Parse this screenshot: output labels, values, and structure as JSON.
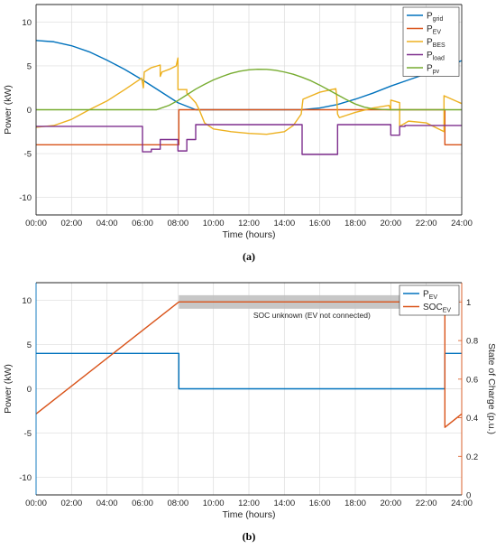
{
  "chart_data": [
    {
      "type": "line",
      "caption": "(a)",
      "xlabel": "Time (hours)",
      "ylabel": "Power (kW)",
      "xlim": [
        0,
        24
      ],
      "ylim": [
        -12,
        12
      ],
      "xticks": [
        "00:00",
        "02:00",
        "04:00",
        "06:00",
        "08:00",
        "10:00",
        "12:00",
        "14:00",
        "16:00",
        "18:00",
        "20:00",
        "22:00",
        "24:00"
      ],
      "yticks": [
        "-10",
        "-5",
        "0",
        "5",
        "10"
      ],
      "grid": true,
      "legend": "top-right",
      "series": [
        {
          "name": "P",
          "sub": "grid",
          "color": "#0072BD",
          "x": [
            0,
            1,
            2,
            3,
            4,
            5,
            6,
            7,
            8,
            9,
            10,
            11,
            12,
            13,
            14,
            15,
            16,
            17,
            18,
            19,
            20,
            21,
            22,
            23,
            24
          ],
          "y": [
            7.9,
            7.75,
            7.3,
            6.6,
            5.65,
            4.6,
            3.4,
            2.1,
            0.8,
            0,
            0,
            0,
            0,
            0,
            0,
            0,
            0.2,
            0.6,
            1.2,
            1.9,
            2.7,
            3.4,
            4.1,
            4.8,
            5.6
          ]
        },
        {
          "name": "P",
          "sub": "EV",
          "color": "#D95319",
          "x": [
            0,
            8.05,
            8.05,
            23.05,
            23.05,
            24
          ],
          "y": [
            -4,
            -4,
            0,
            0,
            -4,
            -4
          ]
        },
        {
          "name": "P",
          "sub": "BES",
          "color": "#EDB120",
          "x": [
            0,
            1,
            2,
            3,
            4,
            5,
            5.95,
            6.05,
            6.1,
            6.5,
            7,
            7,
            7.1,
            7.5,
            7.9,
            8,
            8,
            8.5,
            8.5,
            9,
            9.2,
            9.5,
            10,
            11,
            12,
            13,
            14,
            14.5,
            14.95,
            15.05,
            16,
            16.9,
            16.95,
            17,
            17.1,
            18,
            19,
            19.9,
            20,
            20,
            20.5,
            20.5,
            21,
            22,
            23,
            23,
            24
          ],
          "y": [
            -2,
            -1.8,
            -1.1,
            0,
            1,
            2.3,
            3.6,
            2.5,
            4.3,
            4.8,
            5.1,
            3.8,
            4.3,
            4.6,
            5,
            5.9,
            2.3,
            2.3,
            1.9,
            0.8,
            0,
            -1.5,
            -2.2,
            -2.5,
            -2.7,
            -2.8,
            -2.5,
            -1.8,
            -0.5,
            1.2,
            2,
            2.4,
            1.5,
            -0.5,
            -0.9,
            -0.3,
            0.2,
            0.5,
            0,
            1.1,
            0.8,
            -1.9,
            -1.3,
            -1.5,
            -2.5,
            1.6,
            0.7
          ]
        },
        {
          "name": "P",
          "sub": "load",
          "color": "#7E2F8E",
          "x": [
            0,
            6,
            6,
            6.5,
            6.5,
            7,
            7,
            8,
            8,
            8.5,
            8.5,
            9,
            9,
            15,
            15,
            17,
            17,
            20,
            20,
            20.5,
            20.5,
            20.8,
            20.8,
            24
          ],
          "y": [
            -1.9,
            -1.9,
            -4.8,
            -4.8,
            -4.5,
            -4.5,
            -3.4,
            -3.4,
            -4.7,
            -4.7,
            -3.4,
            -3.4,
            -1.7,
            -1.7,
            -5.1,
            -5.1,
            -1.7,
            -1.7,
            -2.9,
            -2.9,
            -1.9,
            -1.9,
            -1.8,
            -1.8
          ]
        },
        {
          "name": "P",
          "sub": "pv",
          "color": "#77AC30",
          "x": [
            0,
            6.8,
            7,
            7.5,
            8,
            8.5,
            9,
            9.5,
            10,
            10.5,
            11,
            11.5,
            12,
            12.5,
            13,
            13.5,
            14,
            14.5,
            15,
            15.5,
            16,
            16.5,
            17,
            17.5,
            18,
            18.5,
            19,
            19.5,
            20,
            20.3,
            24
          ],
          "y": [
            0,
            0,
            0.15,
            0.5,
            1.05,
            1.7,
            2.35,
            2.9,
            3.4,
            3.8,
            4.15,
            4.4,
            4.55,
            4.62,
            4.6,
            4.5,
            4.3,
            4.05,
            3.7,
            3.3,
            2.8,
            2.25,
            1.7,
            1.15,
            0.65,
            0.3,
            0.1,
            0.03,
            0,
            0,
            0
          ]
        }
      ]
    },
    {
      "type": "line",
      "caption": "(b)",
      "xlabel": "Time (hours)",
      "ylabel": "Power (kW)",
      "ylabel_right": "State of Charge (p.u.)",
      "xlim": [
        0,
        24
      ],
      "ylim": [
        -12,
        12
      ],
      "ylim_right": [
        0,
        1.1
      ],
      "xticks": [
        "00:00",
        "02:00",
        "04:00",
        "06:00",
        "08:00",
        "10:00",
        "12:00",
        "14:00",
        "16:00",
        "18:00",
        "20:00",
        "22:00",
        "24:00"
      ],
      "yticks": [
        "-10",
        "-5",
        "0",
        "5",
        "10"
      ],
      "yticks_right": [
        "0",
        "0.2",
        "0.4",
        "0.6",
        "0.8",
        "1"
      ],
      "grid": true,
      "legend": "top-right",
      "annotation": {
        "text": "SOC unknown (EV not connected)",
        "x_start": 8.05,
        "x_end": 23.05
      },
      "series": [
        {
          "name": "P",
          "sub": "EV",
          "color": "#0072BD",
          "axis": "left",
          "x": [
            0,
            8.05,
            8.05,
            23.05,
            23.05,
            24
          ],
          "y": [
            4,
            4,
            0,
            0,
            4,
            4
          ]
        },
        {
          "name": "SOC",
          "sub": "EV",
          "color": "#D95319",
          "axis": "right",
          "x": [
            0,
            8.05,
            23.05,
            23.05,
            24
          ],
          "y": [
            0.42,
            1.0,
            1.0,
            0.35,
            0.42
          ]
        }
      ]
    }
  ]
}
